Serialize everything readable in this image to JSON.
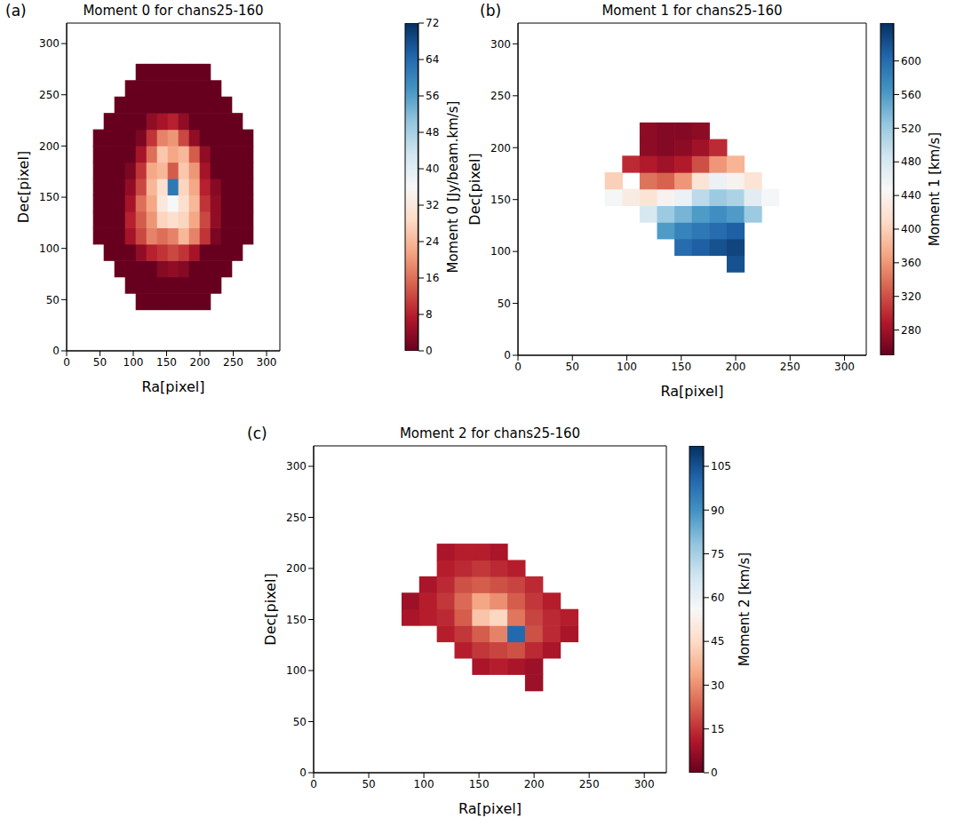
{
  "chart_data": [
    {
      "type": "heatmap",
      "panel_label": "(a)",
      "title": "Moment 0 for chans25-160",
      "x_label": "Ra[pixel]",
      "y_label": "Dec[pixel]",
      "xlim": [
        0,
        320
      ],
      "ylim": [
        0,
        320
      ],
      "xticks": [
        0,
        50,
        100,
        150,
        200,
        250,
        300
      ],
      "yticks": [
        0,
        50,
        100,
        150,
        200,
        250,
        300
      ],
      "x": [
        48,
        64,
        80,
        96,
        112,
        128,
        144,
        160,
        176,
        192,
        208,
        224,
        240,
        256,
        272
      ],
      "y": [
        48,
        64,
        80,
        96,
        112,
        128,
        144,
        160,
        176,
        192,
        208,
        224,
        240,
        256,
        272
      ],
      "cells": [
        [
          null,
          null,
          null,
          null,
          0,
          0,
          0,
          0,
          0,
          0,
          0,
          null,
          null,
          null,
          null
        ],
        [
          null,
          null,
          null,
          0,
          0,
          0,
          0,
          0,
          0,
          0,
          0,
          0,
          null,
          null,
          null
        ],
        [
          null,
          null,
          0,
          0,
          0,
          0,
          3,
          4,
          3,
          0,
          0,
          0,
          0,
          null,
          null
        ],
        [
          null,
          0,
          0,
          0,
          4,
          8,
          10,
          12,
          10,
          6,
          0,
          0,
          0,
          0,
          null
        ],
        [
          0,
          0,
          0,
          6,
          12,
          18,
          16,
          18,
          24,
          18,
          10,
          2,
          0,
          0,
          0
        ],
        [
          0,
          0,
          0,
          8,
          14,
          20,
          28,
          30,
          28,
          22,
          12,
          4,
          0,
          0,
          0
        ],
        [
          0,
          0,
          0,
          6,
          16,
          22,
          32,
          36,
          30,
          24,
          10,
          4,
          0,
          0,
          0
        ],
        [
          0,
          0,
          0,
          4,
          12,
          24,
          30,
          62,
          28,
          22,
          8,
          3,
          0,
          0,
          0
        ],
        [
          0,
          0,
          0,
          2,
          10,
          22,
          24,
          14,
          26,
          20,
          6,
          0,
          0,
          0,
          0
        ],
        [
          0,
          0,
          0,
          0,
          6,
          16,
          26,
          22,
          24,
          14,
          4,
          0,
          0,
          0,
          0
        ],
        [
          0,
          0,
          0,
          0,
          2,
          10,
          18,
          20,
          12,
          4,
          0,
          0,
          0,
          0,
          0
        ],
        [
          null,
          0,
          0,
          0,
          0,
          4,
          6,
          8,
          4,
          0,
          0,
          0,
          0,
          0,
          null
        ],
        [
          null,
          null,
          0,
          0,
          0,
          0,
          0,
          0,
          0,
          0,
          0,
          0,
          0,
          null,
          null
        ],
        [
          null,
          null,
          null,
          0,
          0,
          0,
          0,
          0,
          0,
          0,
          0,
          0,
          null,
          null,
          null
        ],
        [
          null,
          null,
          null,
          null,
          0,
          0,
          0,
          0,
          0,
          0,
          0,
          null,
          null,
          null,
          null
        ]
      ],
      "colorbar": {
        "label": "Moment 0 [Jy/beam.km/s]",
        "range": [
          0,
          72
        ],
        "ticks": [
          0,
          8,
          16,
          24,
          32,
          40,
          48,
          56,
          64,
          72
        ]
      }
    },
    {
      "type": "heatmap",
      "panel_label": "(b)",
      "title": "Moment 1 for chans25-160",
      "x_label": "Ra[pixel]",
      "y_label": "Dec[pixel]",
      "xlim": [
        0,
        320
      ],
      "ylim": [
        0,
        320
      ],
      "xticks": [
        0,
        50,
        100,
        150,
        200,
        250,
        300
      ],
      "yticks": [
        0,
        50,
        100,
        150,
        200,
        250,
        300
      ],
      "x": [
        72,
        88,
        104,
        120,
        136,
        152,
        168,
        184,
        200,
        216,
        232,
        248
      ],
      "y": [
        88,
        104,
        120,
        136,
        152,
        168,
        184,
        200,
        216
      ],
      "cells": [
        [
          null,
          null,
          null,
          null,
          null,
          null,
          null,
          null,
          620,
          null,
          null,
          null
        ],
        [
          null,
          null,
          null,
          null,
          null,
          600,
          610,
          620,
          630,
          null,
          null,
          null
        ],
        [
          null,
          null,
          null,
          null,
          560,
          580,
          590,
          600,
          610,
          null,
          null,
          null
        ],
        [
          null,
          null,
          null,
          480,
          520,
          540,
          560,
          570,
          560,
          520,
          null,
          null
        ],
        [
          null,
          450,
          430,
          420,
          440,
          460,
          500,
          520,
          510,
          470,
          450,
          null
        ],
        [
          null,
          400,
          null,
          340,
          330,
          360,
          420,
          460,
          440,
          420,
          null,
          null
        ],
        [
          null,
          null,
          300,
          290,
          280,
          290,
          320,
          360,
          380,
          null,
          null,
          null
        ],
        [
          null,
          null,
          null,
          270,
          265,
          270,
          280,
          300,
          null,
          null,
          null,
          null
        ],
        [
          null,
          null,
          null,
          270,
          265,
          265,
          270,
          null,
          null,
          null,
          null,
          null
        ]
      ],
      "colorbar": {
        "label": "Moment 1 [km/s]",
        "range": [
          250,
          645
        ],
        "ticks": [
          280,
          320,
          360,
          400,
          440,
          480,
          520,
          560,
          600
        ]
      }
    },
    {
      "type": "heatmap",
      "panel_label": "(c)",
      "title": "Moment 2 for chans25-160",
      "x_label": "Ra[pixel]",
      "y_label": "Dec[pixel]",
      "xlim": [
        0,
        320
      ],
      "ylim": [
        0,
        320
      ],
      "xticks": [
        0,
        50,
        100,
        150,
        200,
        250,
        300
      ],
      "yticks": [
        0,
        50,
        100,
        150,
        200,
        250,
        300
      ],
      "x": [
        72,
        88,
        104,
        120,
        136,
        152,
        168,
        184,
        200,
        216,
        232,
        248
      ],
      "y": [
        88,
        104,
        120,
        136,
        152,
        168,
        184,
        200,
        216
      ],
      "cells": [
        [
          null,
          null,
          null,
          null,
          null,
          null,
          null,
          null,
          8,
          null,
          null,
          null
        ],
        [
          null,
          null,
          null,
          null,
          null,
          10,
          12,
          10,
          8,
          null,
          null,
          null
        ],
        [
          null,
          null,
          null,
          null,
          12,
          16,
          18,
          20,
          14,
          10,
          null,
          null
        ],
        [
          null,
          null,
          null,
          12,
          16,
          22,
          28,
          100,
          20,
          14,
          10,
          null
        ],
        [
          null,
          10,
          12,
          14,
          22,
          40,
          44,
          26,
          18,
          14,
          12,
          null
        ],
        [
          null,
          8,
          12,
          16,
          24,
          34,
          30,
          22,
          16,
          12,
          null,
          null
        ],
        [
          null,
          null,
          10,
          14,
          20,
          22,
          20,
          18,
          14,
          null,
          null,
          null
        ],
        [
          null,
          null,
          null,
          12,
          14,
          16,
          14,
          12,
          null,
          null,
          null,
          null
        ],
        [
          null,
          null,
          null,
          10,
          12,
          12,
          10,
          null,
          null,
          null,
          null,
          null
        ]
      ],
      "colorbar": {
        "label": "Moment 2 [km/s]",
        "range": [
          0,
          112
        ],
        "ticks": [
          0,
          15,
          30,
          45,
          60,
          75,
          90,
          105
        ]
      }
    }
  ]
}
